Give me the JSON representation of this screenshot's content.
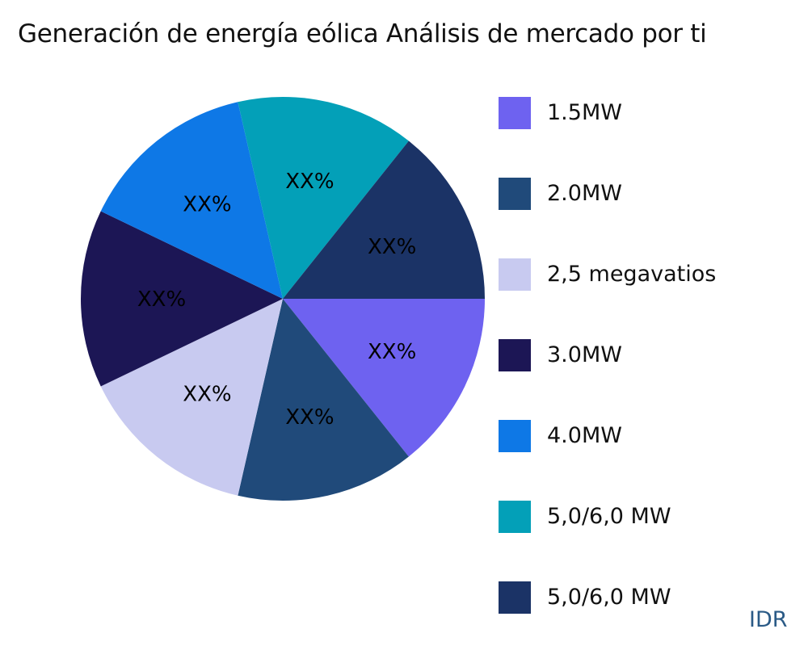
{
  "title": "Generación de energía eólica Análisis de mercado por ti",
  "watermark": "IDR",
  "legend": [
    {
      "label": "1.5MW",
      "color": "#6e62f0"
    },
    {
      "label": "2.0MW",
      "color": "#204a7a"
    },
    {
      "label": "2,5 megavatios",
      "color": "#c8caf0"
    },
    {
      "label": "3.0MW",
      "color": "#1c1655"
    },
    {
      "label": "4.0MW",
      "color": "#0e78e6"
    },
    {
      "label": "5,0/6,0 MW",
      "color": "#03a0b8"
    },
    {
      "label": "5,0/6,0 MW",
      "color": "#1b3366"
    }
  ],
  "chart_data": {
    "type": "pie",
    "title": "Generación de energía eólica Análisis de mercado por ti",
    "categories": [
      "1.5MW",
      "2.0MW",
      "2,5 megavatios",
      "3.0MW",
      "4.0MW",
      "5,0/6,0 MW",
      "5,0/6,0 MW"
    ],
    "values": [
      14.29,
      14.29,
      14.29,
      14.29,
      14.29,
      14.29,
      14.29
    ],
    "data_labels": [
      "XX%",
      "XX%",
      "XX%",
      "XX%",
      "XX%",
      "XX%",
      "XX%"
    ],
    "colors": [
      "#6e62f0",
      "#204a7a",
      "#c8caf0",
      "#1c1655",
      "#0e78e6",
      "#03a0b8",
      "#1b3366"
    ],
    "start_angle_deg": 0,
    "direction": "clockwise",
    "legend_position": "right"
  }
}
